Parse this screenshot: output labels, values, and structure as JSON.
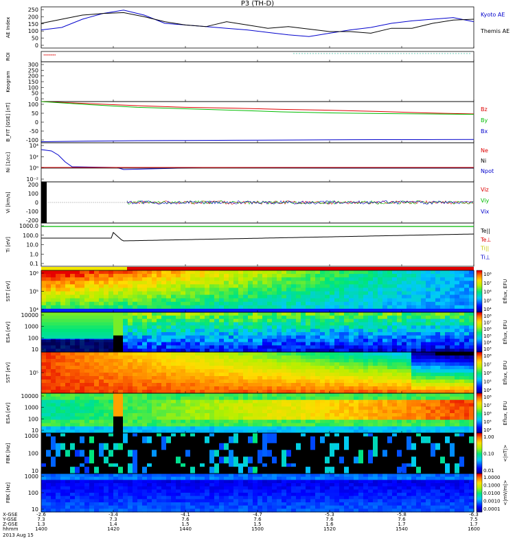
{
  "title": "P3 (TH-D)",
  "footer_date": "2013 Aug 15",
  "colors": {
    "blue": "#0000cc",
    "red": "#dd0000",
    "green": "#00bb00",
    "black": "#000000"
  },
  "chart_data": [
    {
      "type": "line",
      "name": "ae",
      "ylabel": "AE Index",
      "ylim": [
        0,
        250
      ],
      "yticks": [
        "250",
        "200",
        "150",
        "100",
        "50",
        "0"
      ],
      "legend": [
        "Kyoto AE",
        "Themis AE"
      ],
      "series": [
        {
          "name": "Kyoto AE",
          "color": "#0000cc",
          "values": [
            110,
            125,
            175,
            210,
            230,
            200,
            150,
            140,
            130,
            120,
            110,
            95,
            80,
            70,
            90,
            110,
            125,
            150,
            165,
            175,
            185,
            160
          ]
        },
        {
          "name": "Themis AE",
          "color": "#000000",
          "values": [
            150,
            175,
            200,
            210,
            215,
            190,
            160,
            140,
            130,
            160,
            140,
            120,
            130,
            115,
            100,
            100,
            90,
            120,
            120,
            150,
            170,
            175
          ]
        }
      ]
    },
    {
      "type": "line",
      "name": "roi",
      "ylabel": "ROI",
      "yticks": []
    },
    {
      "type": "line",
      "name": "keogram",
      "ylabel": "Keogram",
      "ylim": [
        0,
        300
      ],
      "yticks": [
        "300",
        "250",
        "200",
        "150",
        "100",
        "50",
        "0"
      ]
    },
    {
      "type": "line",
      "name": "bfield",
      "ylabel": "B_FIT [GSE] [nT]",
      "ylim": [
        -100,
        100
      ],
      "yticks": [
        "100",
        "50",
        "0",
        "-50",
        "-100"
      ],
      "legend": [
        "Bz",
        "By",
        "Bx"
      ],
      "series": [
        {
          "name": "Bz",
          "color": "#dd0000",
          "values": [
            100,
            90,
            80,
            72,
            68,
            62,
            58,
            52,
            45,
            40
          ]
        },
        {
          "name": "By",
          "color": "#00bb00",
          "values": [
            100,
            85,
            72,
            65,
            58,
            50,
            45,
            42,
            40,
            38
          ]
        },
        {
          "name": "Bx",
          "color": "#0000cc",
          "values": [
            -95,
            -92,
            -90,
            -89,
            -88,
            -87,
            -86,
            -85,
            -85,
            -84
          ]
        }
      ]
    },
    {
      "type": "line",
      "name": "density",
      "ylabel": "Ni [1/cc]",
      "yticks": [
        "10⁴",
        "10²",
        "10⁰",
        "10⁻²"
      ],
      "legend": [
        "Ne",
        "Ni",
        "Npot"
      ]
    },
    {
      "type": "scatter",
      "name": "velocity",
      "ylabel": "Vi [km/s]",
      "ylim": [
        -300,
        300
      ],
      "yticks": [
        "200",
        "100",
        "0",
        "-100",
        "-200"
      ],
      "legend": [
        "Viz",
        "Viy",
        "Vix"
      ]
    },
    {
      "type": "line",
      "name": "temperature",
      "ylabel": "Ti [eV]",
      "yticks": [
        "1000.0",
        "100.0",
        "10.0",
        "1.0",
        "0.1"
      ],
      "legend": [
        "Te||",
        "Te⊥",
        "Ti||",
        "Ti⊥"
      ]
    },
    {
      "type": "heatmap",
      "name": "sst-e",
      "ylabel": "SST [eV]",
      "yticks": [
        "10⁶",
        "10⁵",
        "10⁴"
      ],
      "cbar_label": "Eflux, EFU",
      "cbar_ticks": [
        "10⁸",
        "10⁷",
        "10⁶",
        "10⁵",
        "10⁴"
      ]
    },
    {
      "type": "heatmap",
      "name": "esa-e",
      "ylabel": "ESA [eV]",
      "yticks": [
        "10000",
        "1000",
        "100",
        "10"
      ],
      "cbar_label": "Eflux, EFU",
      "cbar_ticks": [
        "10⁸",
        "10⁷",
        "10⁶",
        "10⁵",
        "10⁴",
        "10³"
      ]
    },
    {
      "type": "heatmap",
      "name": "sst-i",
      "ylabel": "SST [eV]",
      "yticks": [
        "10⁵"
      ],
      "cbar_label": "Eflux, EFU",
      "cbar_ticks": [
        "10⁸",
        "10⁷",
        "10⁶",
        "10⁵",
        "10⁴"
      ]
    },
    {
      "type": "heatmap",
      "name": "esa-i",
      "ylabel": "ESA [eV]",
      "yticks": [
        "10000",
        "1000",
        "100",
        "10"
      ],
      "cbar_label": "Eflux, EFU",
      "cbar_ticks": [
        "10⁸",
        "10⁷",
        "10⁶",
        "10⁵",
        "10⁴"
      ]
    },
    {
      "type": "heatmap",
      "name": "fbk-b",
      "ylabel": "FBK [Hz]",
      "yticks": [
        "1000",
        "100",
        "10"
      ],
      "cbar_label": "<|nT|>",
      "cbar_ticks": [
        "1.00",
        "0.10",
        "0.01"
      ]
    },
    {
      "type": "heatmap",
      "name": "fbk-e",
      "ylabel": "FBK [Hz]",
      "yticks": [
        "1000",
        "100",
        "10"
      ],
      "cbar_label": "<|mV/m|>",
      "cbar_ticks": [
        "1.0000",
        "0.1000",
        "0.0100",
        "0.0010",
        "0.0001"
      ]
    }
  ],
  "xaxis": {
    "rows": [
      "X-GSE",
      "Y-GSE",
      "Z-GSE",
      "hhmm"
    ],
    "cols": [
      {
        "x": "-2.6",
        "y": "7.3",
        "z": "1.3",
        "t": "1400"
      },
      {
        "x": "-3.4",
        "y": "7.3",
        "z": "1.4",
        "t": "1420"
      },
      {
        "x": "-4.1",
        "y": "7.6",
        "z": "1.5",
        "t": "1440"
      },
      {
        "x": "-4.7",
        "y": "7.6",
        "z": "1.5",
        "t": "1500"
      },
      {
        "x": "-5.3",
        "y": "7.6",
        "z": "1.6",
        "t": "1520"
      },
      {
        "x": "-5.8",
        "y": "7.6",
        "z": "1.7",
        "t": "1540"
      },
      {
        "x": "-6.3",
        "y": "7.5",
        "z": "1.7",
        "t": "1600"
      }
    ]
  }
}
